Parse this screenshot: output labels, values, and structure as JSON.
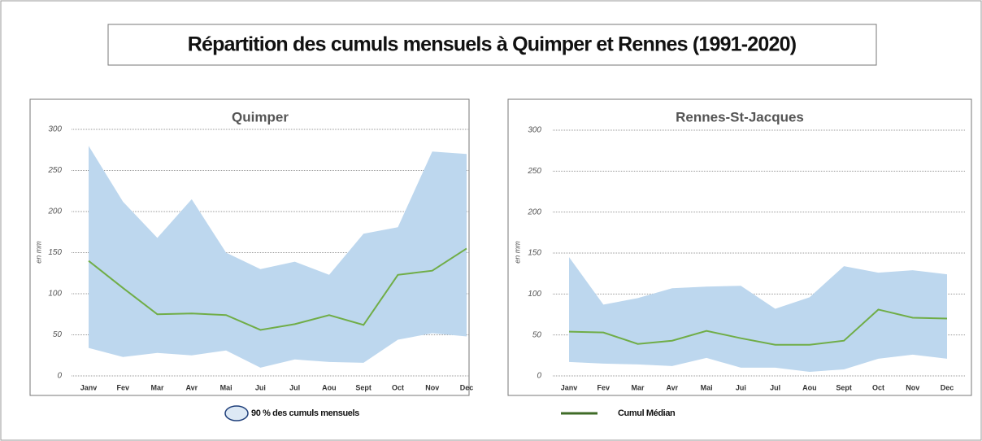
{
  "title": "Répartition des cumuls mensuels à Quimper et Rennes (1991-2020)",
  "legend": {
    "band": "90 % des cumuls mensuels",
    "line": "Cumul Médian"
  },
  "chart_data": [
    {
      "type": "area_range_line",
      "title": "Quimper",
      "y_label": "en mm",
      "categories": [
        "Janv",
        "Fev",
        "Mar",
        "Avr",
        "Mai",
        "Jui",
        "Jul",
        "Aou",
        "Sept",
        "Oct",
        "Nov",
        "Dec"
      ],
      "ylim": [
        0,
        300
      ],
      "yticks": [
        0,
        50,
        100,
        150,
        200,
        250,
        300
      ],
      "grid": true,
      "band": {
        "color": "#bdd7ee",
        "high": [
          280,
          212,
          168,
          215,
          150,
          130,
          139,
          123,
          173,
          181,
          273,
          270
        ],
        "low": [
          34,
          23,
          28,
          25,
          31,
          10,
          20,
          17,
          16,
          44,
          52,
          48
        ]
      },
      "median": {
        "color": "#70ad47",
        "values": [
          140,
          107,
          75,
          76,
          74,
          56,
          63,
          74,
          62,
          123,
          128,
          155
        ]
      }
    },
    {
      "type": "area_range_line",
      "title": "Rennes-St-Jacques",
      "y_label": "en mm",
      "categories": [
        "Janv",
        "Fev",
        "Mar",
        "Avr",
        "Mai",
        "Jui",
        "Jul",
        "Aou",
        "Sept",
        "Oct",
        "Nov",
        "Dec"
      ],
      "ylim": [
        0,
        300
      ],
      "yticks": [
        0,
        50,
        100,
        150,
        200,
        250,
        300
      ],
      "grid": true,
      "band": {
        "color": "#bdd7ee",
        "high": [
          145,
          87,
          95,
          107,
          109,
          110,
          82,
          96,
          134,
          126,
          129,
          124
        ],
        "low": [
          17,
          15,
          14,
          12,
          22,
          10,
          10,
          5,
          8,
          21,
          26,
          21
        ]
      },
      "median": {
        "color": "#70ad47",
        "values": [
          54,
          53,
          39,
          43,
          55,
          46,
          38,
          38,
          43,
          81,
          71,
          70
        ]
      }
    }
  ]
}
